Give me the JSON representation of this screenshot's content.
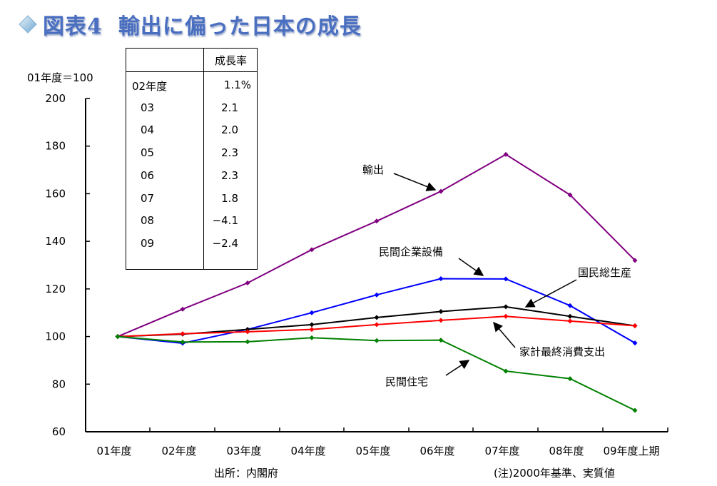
{
  "title": {
    "figure": "図表4",
    "text": "輸出に偏った日本の成長"
  },
  "unit_label": "01年度＝100",
  "source": "出所：内閣府",
  "note": "(注)2000年基準、実質値",
  "table": {
    "header": "成長率",
    "rows": [
      {
        "year": "02年度",
        "value": "1.1%"
      },
      {
        "year": "03",
        "value": "2.1"
      },
      {
        "year": "04",
        "value": "2.0"
      },
      {
        "year": "05",
        "value": "2.3"
      },
      {
        "year": "06",
        "value": "2.3"
      },
      {
        "year": "07",
        "value": "1.8"
      },
      {
        "year": "08",
        "value": "−4.1"
      },
      {
        "year": "09",
        "value": "−2.4"
      }
    ]
  },
  "chart_data": {
    "type": "line",
    "categories": [
      "01年度",
      "02年度",
      "03年度",
      "04年度",
      "05年度",
      "06年度",
      "07年度",
      "08年度",
      "09年度上期"
    ],
    "ylim": [
      60,
      200
    ],
    "yticks": [
      60,
      80,
      100,
      120,
      140,
      160,
      180,
      200
    ],
    "grid": false,
    "series": [
      {
        "name": "輸出",
        "color": "#800080",
        "values": [
          100,
          111.5,
          122.5,
          136.5,
          148.5,
          161,
          176.5,
          159.5,
          132
        ]
      },
      {
        "name": "民間企業設備",
        "color": "#0000ff",
        "values": [
          100,
          97.2,
          103,
          110,
          117.5,
          124.3,
          124.2,
          113,
          97.3
        ]
      },
      {
        "name": "国民総生産",
        "color": "#000000",
        "values": [
          100,
          101,
          103,
          105,
          108,
          110.5,
          112.5,
          108.5,
          104.5
        ]
      },
      {
        "name": "家計最終消費支出",
        "color": "#ff0000",
        "values": [
          100,
          101.2,
          102,
          103,
          105,
          106.8,
          108.5,
          106.5,
          104.5
        ]
      },
      {
        "name": "民間住宅",
        "color": "#008000",
        "values": [
          100,
          97.7,
          97.8,
          99.5,
          98.3,
          98.5,
          85.5,
          82.3,
          69
        ]
      }
    ]
  }
}
